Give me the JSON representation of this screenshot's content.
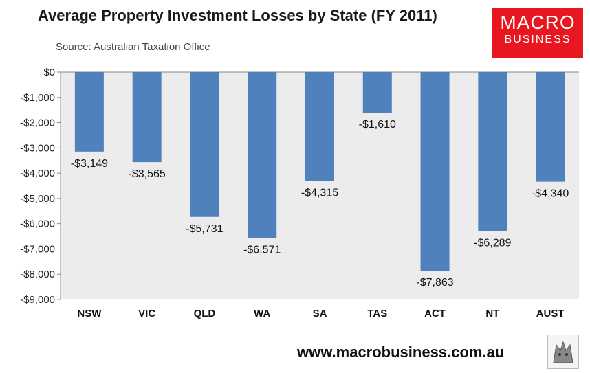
{
  "header": {
    "title": "Average Property Investment Losses by State (FY 2011)",
    "source": "Source:  Australian Taxation Office"
  },
  "logo": {
    "line1": "MACRO",
    "line2": "BUSINESS"
  },
  "footer": {
    "url": "www.macrobusiness.com.au"
  },
  "colors": {
    "bar": "#4f81bd",
    "plot_bg": "#ececec",
    "logo_bg": "#e8161e"
  },
  "chart_data": {
    "type": "bar",
    "title": "Average Property Investment Losses by State (FY 2011)",
    "subtitle": "Source:  Australian Taxation Office",
    "categories": [
      "NSW",
      "VIC",
      "QLD",
      "WA",
      "SA",
      "TAS",
      "ACT",
      "NT",
      "AUST"
    ],
    "values": [
      -3149,
      -3565,
      -5731,
      -6571,
      -4315,
      -1610,
      -7863,
      -6289,
      -4340
    ],
    "data_labels": [
      "-$3,149",
      "-$3,565",
      "-$5,731",
      "-$6,571",
      "-$4,315",
      "-$1,610",
      "-$7,863",
      "-$6,289",
      "-$4,340"
    ],
    "y_ticks": [
      "$0",
      "-$1,000",
      "-$2,000",
      "-$3,000",
      "-$4,000",
      "-$5,000",
      "-$6,000",
      "-$7,000",
      "-$8,000",
      "-$9,000"
    ],
    "ylim": [
      -9000,
      0
    ],
    "xlabel": "",
    "ylabel": "",
    "grid": false,
    "legend": "none"
  }
}
